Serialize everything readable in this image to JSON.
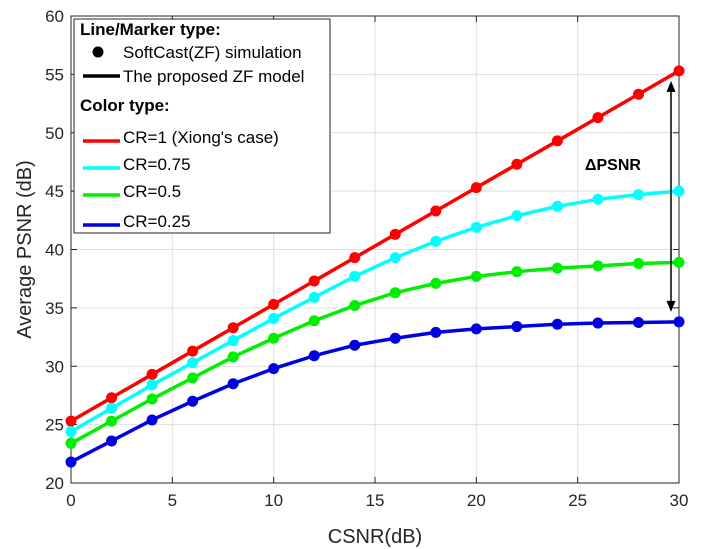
{
  "chart_data": {
    "type": "line",
    "title": "",
    "xlabel": "CSNR(dB)",
    "ylabel": "Average PSNR (dB)",
    "xlim": [
      0,
      30
    ],
    "ylim": [
      20,
      60
    ],
    "xticks": [
      0,
      5,
      10,
      15,
      20,
      25,
      30
    ],
    "yticks": [
      20,
      25,
      30,
      35,
      40,
      45,
      50,
      55,
      60
    ],
    "grid": true,
    "legend_position": "top-left",
    "x": [
      0,
      2,
      4,
      6,
      8,
      10,
      12,
      14,
      16,
      18,
      20,
      22,
      24,
      26,
      28,
      30
    ],
    "series": [
      {
        "name": "CR=1 (Xiong's case)",
        "color": "#ff0000",
        "values": [
          25.3,
          27.3,
          29.3,
          31.3,
          33.3,
          35.3,
          37.3,
          39.3,
          41.3,
          43.3,
          45.3,
          47.3,
          49.3,
          51.3,
          53.3,
          55.3
        ]
      },
      {
        "name": "CR=0.75",
        "color": "#00ffff",
        "values": [
          24.4,
          26.4,
          28.4,
          30.3,
          32.2,
          34.1,
          35.9,
          37.7,
          39.3,
          40.7,
          41.9,
          42.9,
          43.7,
          44.3,
          44.7,
          45.0
        ]
      },
      {
        "name": "CR=0.5",
        "color": "#00ee00",
        "values": [
          23.4,
          25.3,
          27.2,
          29.0,
          30.8,
          32.4,
          33.9,
          35.2,
          36.3,
          37.1,
          37.7,
          38.1,
          38.4,
          38.6,
          38.8,
          38.9
        ]
      },
      {
        "name": "CR=0.25",
        "color": "#0000e0",
        "values": [
          21.8,
          23.6,
          25.4,
          27.0,
          28.5,
          29.8,
          30.9,
          31.8,
          32.4,
          32.9,
          33.2,
          33.4,
          33.6,
          33.7,
          33.75,
          33.8
        ]
      }
    ],
    "legend": {
      "marker_header": "Line/Marker type:",
      "marker_entries": [
        "SoftCast(ZF) simulation",
        "The proposed ZF model"
      ],
      "color_header": "Color type:"
    },
    "annotation": {
      "text": "ΔPSNR",
      "x": 30,
      "y_from": 33.8,
      "y_to": 55.3
    }
  }
}
